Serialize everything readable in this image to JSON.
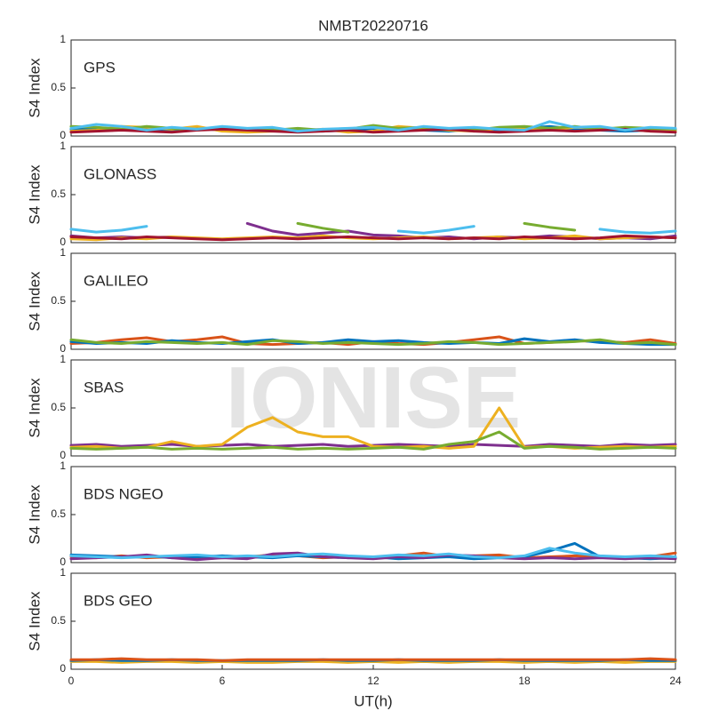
{
  "chart_data": [
    {
      "type": "line",
      "title": "NMBT20220716",
      "annotation": "GPS",
      "ylabel": "S4 Index",
      "xlim": [
        0,
        24
      ],
      "ylim": [
        0,
        1
      ],
      "yticks": [
        0,
        0.5,
        1
      ],
      "x": [
        0,
        1,
        2,
        3,
        4,
        5,
        6,
        7,
        8,
        9,
        10,
        11,
        12,
        13,
        14,
        15,
        16,
        17,
        18,
        19,
        20,
        21,
        22,
        23,
        24
      ],
      "series": [
        {
          "color": "#0072BD",
          "values": [
            0.07,
            0.08,
            0.06,
            0.07,
            0.05,
            0.08,
            0.06,
            0.05,
            0.07,
            0.06,
            0.05,
            0.06,
            0.08,
            0.07,
            0.06,
            0.05,
            0.07,
            0.06,
            0.08,
            0.1,
            0.07,
            0.06,
            0.05,
            0.06,
            0.06
          ]
        },
        {
          "color": "#EDB120",
          "values": [
            0.05,
            0.06,
            0.1,
            0.09,
            0.07,
            0.1,
            0.05,
            0.04,
            0.05,
            0.06,
            0.07,
            0.04,
            0.05,
            0.1,
            0.08,
            0.06,
            0.05,
            0.08,
            0.07,
            0.06,
            0.09,
            0.08,
            0.07,
            0.05,
            0.05
          ]
        },
        {
          "color": "#77AC30",
          "values": [
            0.1,
            0.09,
            0.07,
            0.1,
            0.08,
            0.06,
            0.09,
            0.07,
            0.06,
            0.08,
            0.06,
            0.07,
            0.11,
            0.08,
            0.09,
            0.07,
            0.06,
            0.09,
            0.1,
            0.08,
            0.1,
            0.07,
            0.09,
            0.08,
            0.07
          ]
        },
        {
          "color": "#A2142F",
          "values": [
            0.04,
            0.05,
            0.06,
            0.05,
            0.04,
            0.06,
            0.07,
            0.06,
            0.05,
            0.04,
            0.05,
            0.06,
            0.04,
            0.05,
            0.06,
            0.07,
            0.05,
            0.04,
            0.05,
            0.06,
            0.05,
            0.06,
            0.07,
            0.05,
            0.04
          ]
        },
        {
          "color": "#4DBEEE",
          "values": [
            0.08,
            0.12,
            0.1,
            0.06,
            0.09,
            0.07,
            0.1,
            0.08,
            0.09,
            0.05,
            0.07,
            0.08,
            0.09,
            0.06,
            0.1,
            0.08,
            0.09,
            0.07,
            0.06,
            0.15,
            0.09,
            0.1,
            0.06,
            0.09,
            0.08
          ]
        }
      ]
    },
    {
      "type": "line",
      "annotation": "GLONASS",
      "ylabel": "S4 Index",
      "xlim": [
        0,
        24
      ],
      "ylim": [
        0,
        1
      ],
      "yticks": [
        0,
        0.5,
        1
      ],
      "x": [
        0,
        1,
        2,
        3,
        4,
        5,
        6,
        7,
        8,
        9,
        10,
        11,
        12,
        13,
        14,
        15,
        16,
        17,
        18,
        19,
        20,
        21,
        22,
        23,
        24
      ],
      "series": [
        {
          "color": "#4DBEEE",
          "values": [
            0.14,
            0.11,
            0.13,
            0.17,
            null,
            null,
            null,
            null,
            null,
            null,
            null,
            null,
            null,
            0.12,
            0.1,
            0.13,
            0.17,
            null,
            null,
            null,
            null,
            0.14,
            0.11,
            0.1,
            0.12
          ]
        },
        {
          "color": "#7E2F8E",
          "values": [
            0.07,
            0.05,
            0.06,
            0.05,
            0.06,
            null,
            null,
            0.2,
            0.12,
            0.08,
            0.1,
            0.12,
            0.08,
            0.07,
            0.05,
            0.06,
            0.04,
            0.06,
            0.05,
            0.07,
            0.06,
            0.04,
            0.05,
            0.04,
            0.07
          ]
        },
        {
          "color": "#77AC30",
          "values": [
            null,
            null,
            null,
            null,
            null,
            null,
            null,
            null,
            null,
            0.2,
            0.15,
            0.11,
            null,
            null,
            null,
            null,
            null,
            null,
            0.2,
            0.16,
            0.13,
            null,
            null,
            null,
            null
          ]
        },
        {
          "color": "#EDB120",
          "values": [
            0.04,
            0.03,
            0.05,
            0.04,
            0.06,
            0.05,
            0.04,
            0.05,
            0.06,
            0.05,
            0.07,
            0.05,
            0.04,
            0.05,
            0.06,
            0.04,
            0.05,
            0.06,
            0.04,
            0.05,
            0.07,
            0.04,
            0.05,
            0.06,
            0.05
          ]
        },
        {
          "color": "#A2142F",
          "values": [
            0.06,
            0.05,
            0.04,
            0.06,
            0.05,
            0.04,
            0.03,
            0.04,
            0.05,
            0.04,
            0.05,
            0.06,
            0.05,
            0.04,
            0.05,
            0.04,
            0.05,
            0.04,
            0.06,
            0.05,
            0.04,
            0.05,
            0.07,
            0.06,
            0.05
          ]
        }
      ]
    },
    {
      "type": "line",
      "annotation": "GALILEO",
      "ylabel": "S4 Index",
      "xlim": [
        0,
        24
      ],
      "ylim": [
        0,
        1
      ],
      "yticks": [
        0,
        0.5,
        1
      ],
      "x": [
        0,
        1,
        2,
        3,
        4,
        5,
        6,
        7,
        8,
        9,
        10,
        11,
        12,
        13,
        14,
        15,
        16,
        17,
        18,
        19,
        20,
        21,
        22,
        23,
        24
      ],
      "series": [
        {
          "color": "#D95319",
          "values": [
            0.06,
            0.07,
            0.1,
            0.12,
            0.08,
            0.1,
            0.13,
            0.06,
            0.05,
            0.06,
            0.07,
            0.05,
            0.08,
            0.06,
            0.05,
            0.07,
            0.1,
            0.13,
            0.06,
            0.07,
            0.09,
            0.08,
            0.07,
            0.1,
            0.06
          ]
        },
        {
          "color": "#0072BD",
          "values": [
            0.08,
            0.06,
            0.07,
            0.06,
            0.09,
            0.07,
            0.06,
            0.08,
            0.1,
            0.06,
            0.07,
            0.1,
            0.08,
            0.09,
            0.07,
            0.06,
            0.07,
            0.06,
            0.11,
            0.08,
            0.1,
            0.07,
            0.06,
            0.05,
            0.05
          ]
        },
        {
          "color": "#77AC30",
          "values": [
            0.1,
            0.07,
            0.06,
            0.08,
            0.07,
            0.06,
            0.07,
            0.05,
            0.09,
            0.08,
            0.06,
            0.07,
            0.06,
            0.05,
            0.06,
            0.08,
            0.07,
            0.05,
            0.06,
            0.07,
            0.08,
            0.1,
            0.06,
            0.07,
            0.05
          ]
        }
      ]
    },
    {
      "type": "line",
      "annotation": "SBAS",
      "watermark": "IONISE",
      "ylabel": "S4 Index",
      "xlim": [
        0,
        24
      ],
      "ylim": [
        0,
        1
      ],
      "yticks": [
        0,
        0.5,
        1
      ],
      "x": [
        0,
        1,
        2,
        3,
        4,
        5,
        6,
        7,
        8,
        9,
        10,
        11,
        12,
        13,
        14,
        15,
        16,
        17,
        18,
        19,
        20,
        21,
        22,
        23,
        24
      ],
      "series": [
        {
          "color": "#7E2F8E",
          "values": [
            0.11,
            0.12,
            0.1,
            0.11,
            0.12,
            0.1,
            0.11,
            0.12,
            0.1,
            0.11,
            0.12,
            0.1,
            0.11,
            0.12,
            0.11,
            0.1,
            0.12,
            0.11,
            0.1,
            0.12,
            0.11,
            0.1,
            0.12,
            0.11,
            0.12
          ]
        },
        {
          "color": "#EDB120",
          "values": [
            0.09,
            0.1,
            0.08,
            0.09,
            0.15,
            0.1,
            0.12,
            0.3,
            0.4,
            0.25,
            0.2,
            0.2,
            0.1,
            0.09,
            0.1,
            0.08,
            0.1,
            0.5,
            0.09,
            0.1,
            0.08,
            0.09,
            0.1,
            0.09,
            0.1
          ]
        },
        {
          "color": "#77AC30",
          "values": [
            0.08,
            0.07,
            0.08,
            0.09,
            0.07,
            0.08,
            0.07,
            0.08,
            0.09,
            0.07,
            0.08,
            0.07,
            0.08,
            0.09,
            0.07,
            0.12,
            0.15,
            0.25,
            0.08,
            0.1,
            0.09,
            0.07,
            0.08,
            0.09,
            0.08
          ]
        }
      ]
    },
    {
      "type": "line",
      "annotation": "BDS NGEO",
      "ylabel": "S4 Index",
      "xlim": [
        0,
        24
      ],
      "ylim": [
        0,
        1
      ],
      "yticks": [
        0,
        0.5,
        1
      ],
      "x": [
        0,
        1,
        2,
        3,
        4,
        5,
        6,
        7,
        8,
        9,
        10,
        11,
        12,
        13,
        14,
        15,
        16,
        17,
        18,
        19,
        20,
        21,
        22,
        23,
        24
      ],
      "series": [
        {
          "color": "#D95319",
          "values": [
            0.06,
            0.05,
            0.07,
            0.05,
            0.06,
            0.04,
            0.05,
            0.06,
            0.08,
            0.07,
            0.05,
            0.06,
            0.05,
            0.07,
            0.1,
            0.06,
            0.07,
            0.08,
            0.05,
            0.06,
            0.07,
            0.06,
            0.05,
            0.06,
            0.1
          ]
        },
        {
          "color": "#0072BD",
          "values": [
            0.08,
            0.07,
            0.06,
            0.07,
            0.05,
            0.06,
            0.07,
            0.06,
            0.05,
            0.07,
            0.06,
            0.05,
            0.06,
            0.04,
            0.05,
            0.06,
            0.04,
            0.05,
            0.06,
            0.12,
            0.2,
            0.06,
            0.05,
            0.04,
            0.05
          ]
        },
        {
          "color": "#7E2F8E",
          "values": [
            0.04,
            0.05,
            0.06,
            0.08,
            0.05,
            0.03,
            0.05,
            0.04,
            0.09,
            0.1,
            0.06,
            0.05,
            0.04,
            0.06,
            0.05,
            0.08,
            0.07,
            0.05,
            0.04,
            0.05,
            0.04,
            0.05,
            0.04,
            0.05,
            0.04
          ]
        },
        {
          "color": "#4DBEEE",
          "values": [
            0.07,
            0.06,
            0.05,
            0.06,
            0.07,
            0.08,
            0.06,
            0.07,
            0.06,
            0.08,
            0.09,
            0.07,
            0.06,
            0.08,
            0.07,
            0.09,
            0.06,
            0.05,
            0.07,
            0.15,
            0.1,
            0.07,
            0.06,
            0.07,
            0.06
          ]
        }
      ]
    },
    {
      "type": "line",
      "annotation": "BDS GEO",
      "ylabel": "S4 Index",
      "xlabel": "UT(h)",
      "xlim": [
        0,
        24
      ],
      "ylim": [
        0,
        1
      ],
      "yticks": [
        0,
        0.5,
        1
      ],
      "xticks": [
        0,
        6,
        12,
        18,
        24
      ],
      "x": [
        0,
        1,
        2,
        3,
        4,
        5,
        6,
        7,
        8,
        9,
        10,
        11,
        12,
        13,
        14,
        15,
        16,
        17,
        18,
        19,
        20,
        21,
        22,
        23,
        24
      ],
      "series": [
        {
          "color": "#EDB120",
          "values": [
            0.08,
            0.08,
            0.07,
            0.08,
            0.08,
            0.07,
            0.08,
            0.07,
            0.07,
            0.08,
            0.08,
            0.07,
            0.08,
            0.07,
            0.08,
            0.07,
            0.08,
            0.08,
            0.07,
            0.08,
            0.07,
            0.08,
            0.07,
            0.08,
            0.08
          ]
        },
        {
          "color": "#0072BD",
          "values": [
            0.09,
            0.1,
            0.09,
            0.09,
            0.1,
            0.09,
            0.09,
            0.09,
            0.09,
            0.09,
            0.1,
            0.09,
            0.09,
            0.1,
            0.09,
            0.09,
            0.09,
            0.1,
            0.09,
            0.09,
            0.09,
            0.09,
            0.1,
            0.09,
            0.09
          ]
        },
        {
          "color": "#D95319",
          "values": [
            0.1,
            0.1,
            0.11,
            0.1,
            0.1,
            0.1,
            0.09,
            0.1,
            0.1,
            0.1,
            0.1,
            0.1,
            0.1,
            0.1,
            0.1,
            0.1,
            0.1,
            0.1,
            0.1,
            0.1,
            0.1,
            0.1,
            0.1,
            0.11,
            0.1
          ]
        }
      ]
    }
  ]
}
